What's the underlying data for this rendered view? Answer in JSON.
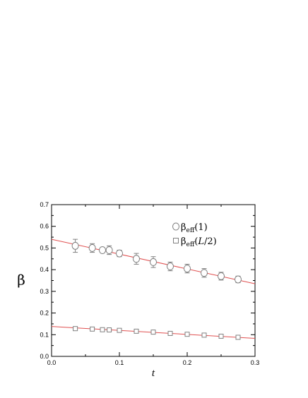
{
  "chart_data": {
    "type": "scatter",
    "xlabel": "t",
    "ylabel": "β",
    "xlim": [
      0.0,
      0.3
    ],
    "ylim": [
      0.0,
      0.7
    ],
    "xticks": [
      "0.0",
      "0.1",
      "0.2",
      "0.3"
    ],
    "yticks": [
      "0.0",
      "0.1",
      "0.2",
      "0.3",
      "0.4",
      "0.5",
      "0.6",
      "0.7"
    ],
    "xtick_values": [
      0.0,
      0.1,
      0.2,
      0.3
    ],
    "ytick_values": [
      0.0,
      0.1,
      0.2,
      0.3,
      0.4,
      0.5,
      0.6,
      0.7
    ],
    "grid": false,
    "legend_position": "top-right",
    "series": [
      {
        "name": "β_eff(1)",
        "legend_base": "β",
        "legend_sub": "eff",
        "legend_arg": "(1)",
        "marker": "circle",
        "x": [
          0.035,
          0.06,
          0.075,
          0.085,
          0.1,
          0.125,
          0.15,
          0.175,
          0.2,
          0.225,
          0.25,
          0.275
        ],
        "y": [
          0.51,
          0.5,
          0.49,
          0.49,
          0.475,
          0.45,
          0.435,
          0.415,
          0.405,
          0.385,
          0.37,
          0.355
        ],
        "err": [
          0.03,
          0.02,
          0.012,
          0.02,
          0.015,
          0.025,
          0.025,
          0.02,
          0.02,
          0.02,
          0.018,
          0.015
        ],
        "fit": {
          "x": [
            0.0,
            0.3
          ],
          "y": [
            0.54,
            0.335
          ]
        }
      },
      {
        "name": "β_eff(L/2)",
        "legend_base": "β",
        "legend_sub": "eff",
        "legend_arg": "(L/2)",
        "marker": "square",
        "x": [
          0.035,
          0.06,
          0.075,
          0.085,
          0.1,
          0.125,
          0.15,
          0.175,
          0.2,
          0.225,
          0.25,
          0.275
        ],
        "y": [
          0.128,
          0.126,
          0.123,
          0.122,
          0.12,
          0.116,
          0.112,
          0.106,
          0.102,
          0.098,
          0.093,
          0.088
        ],
        "err": [
          0.006,
          0.005,
          0.004,
          0.005,
          0.004,
          0.004,
          0.004,
          0.004,
          0.004,
          0.004,
          0.004,
          0.004
        ],
        "fit": {
          "x": [
            0.0,
            0.3
          ],
          "y": [
            0.138,
            0.083
          ]
        }
      }
    ],
    "colors": {
      "fit_line": "#e05050",
      "marker": "#808080",
      "axis": "#000000"
    }
  }
}
